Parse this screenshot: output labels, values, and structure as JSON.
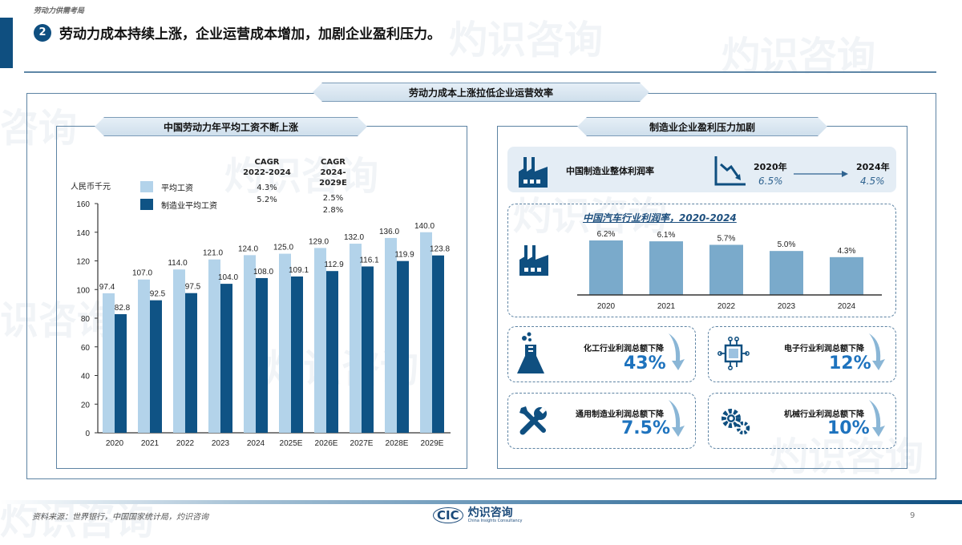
{
  "header": {
    "section_label": "劳动力供需考局",
    "badge_number": "2",
    "title": "劳动力成本持续上涨，企业运营成本增加，加剧企业盈利压力。"
  },
  "main_banner": "劳动力成本上涨拉低企业运营效率",
  "left_panel": {
    "banner": "中国劳动力年平均工资不断上涨",
    "unit": "人民币千元",
    "legend": [
      {
        "label": "平均工资",
        "color": "#b3d3ea"
      },
      {
        "label": "制造业平均工资",
        "color": "#0f5385"
      }
    ],
    "cagr": [
      {
        "header": "CAGR",
        "period": "2022-2024",
        "values": [
          "4.3%",
          "5.2%"
        ]
      },
      {
        "header": "CAGR",
        "period": "2024-2029E",
        "values": [
          "2.5%",
          "2.8%"
        ]
      }
    ]
  },
  "chart_data": [
    {
      "type": "bar",
      "title": "中国劳动力年平均工资不断上涨",
      "ylabel": "人民币千元",
      "xlabel": "",
      "ylim": [
        0,
        160
      ],
      "yticks": [
        0,
        20,
        40,
        60,
        80,
        100,
        120,
        140,
        160
      ],
      "categories": [
        "2020",
        "2021",
        "2022",
        "2023",
        "2024",
        "2025E",
        "2026E",
        "2027E",
        "2028E",
        "2029E"
      ],
      "series": [
        {
          "name": "平均工资",
          "color": "#b3d3ea",
          "values": [
            97.4,
            107.0,
            114.0,
            121.0,
            124.0,
            125.0,
            129.0,
            132.0,
            136.0,
            140.0
          ]
        },
        {
          "name": "制造业平均工资",
          "color": "#0f5385",
          "values": [
            82.8,
            92.5,
            97.5,
            104.0,
            108.0,
            109.1,
            112.9,
            116.1,
            119.9,
            123.8
          ]
        }
      ],
      "legend_position": "top-left",
      "grid": false
    },
    {
      "type": "bar",
      "title": "中国汽车行业利润率, 2020-2024",
      "categories": [
        "2020",
        "2021",
        "2022",
        "2023",
        "2024"
      ],
      "values": [
        6.2,
        6.1,
        5.7,
        5.0,
        4.3
      ],
      "labels": [
        "6.2%",
        "6.1%",
        "5.7%",
        "5.0%",
        "4.3%"
      ],
      "color": "#7aaacb",
      "grid": false
    }
  ],
  "right_panel": {
    "banner": "制造业企业盈利压力加剧",
    "overall_profit": {
      "label": "中国制造业整体利润率",
      "from_year": "2020年",
      "from_value": "6.5%",
      "to_year": "2024年",
      "to_value": "4.5%"
    },
    "auto_title": "中国汽车行业利润率，2020-2024",
    "drop_cards": [
      {
        "icon": "flask-icon",
        "label": "化工行业利润总额下降",
        "value": "43%"
      },
      {
        "icon": "chip-icon",
        "label": "电子行业利润总额下降",
        "value": "12%"
      },
      {
        "icon": "tools-icon",
        "label": "通用制造业利润总额下降",
        "value": "7.5%"
      },
      {
        "icon": "gears-icon",
        "label": "机械行业利润总额下降",
        "value": "10%"
      }
    ]
  },
  "footer": {
    "source": "资料来源：世界银行，中国国家统计局，灼识咨询",
    "logo_cic": "CIC",
    "logo_cn": "灼识咨询",
    "logo_en": "China Insights Consultancy",
    "page_number": "9"
  }
}
